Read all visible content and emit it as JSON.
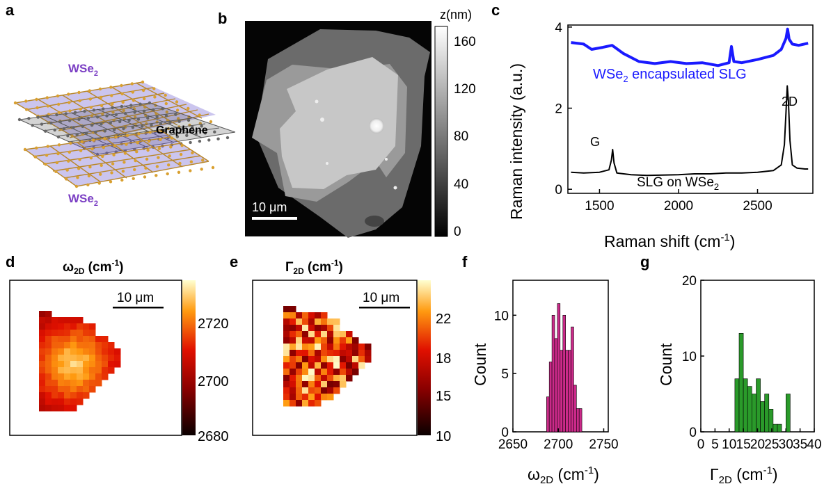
{
  "panel_labels": [
    "a",
    "b",
    "c",
    "d",
    "e",
    "f",
    "g"
  ],
  "panel_a": {
    "top_layer": "WSe",
    "bottom_layer": "WSe",
    "subscript": "2",
    "middle_layer": "Graphene"
  },
  "panel_b": {
    "colorbar_title": "z(nm)",
    "colorbar_ticks": [
      "160",
      "120",
      "80",
      "40",
      "0"
    ],
    "scalebar": "10 μm"
  },
  "panel_d": {
    "title_main": "ω",
    "title_sub": "2D",
    "title_unit": " (cm",
    "title_exp": "-1",
    "title_close": ")",
    "scalebar": "10 μm",
    "colorbar_ticks": [
      "2720",
      "2700",
      "2680"
    ]
  },
  "panel_e": {
    "title_main": "Γ",
    "title_sub": "2D",
    "title_unit": " (cm",
    "title_exp": "-1",
    "title_close": ")",
    "scalebar": "10 μm",
    "colorbar_ticks": [
      "22",
      "18",
      "15",
      "10"
    ]
  },
  "chart_data": [
    {
      "panel": "c",
      "type": "line",
      "xlabel": "Raman shift (cm-1)",
      "ylabel": "Raman intensity (a.u.)",
      "xlim": [
        1300,
        2850
      ],
      "ylim": [
        -0.1,
        4.05
      ],
      "xticks": [
        1500,
        2000,
        2500
      ],
      "yticks": [
        0,
        2,
        4
      ],
      "annotations": [
        "WSe2 encapsulated SLG",
        "SLG on WSe2",
        "G",
        "2D"
      ],
      "series": [
        {
          "name": "WSe2 encapsulated SLG",
          "color": "#1a1aff",
          "x": [
            1320,
            1400,
            1450,
            1520,
            1580,
            1650,
            1750,
            1850,
            1950,
            2050,
            2150,
            2250,
            2320,
            2335,
            2350,
            2400,
            2500,
            2600,
            2650,
            2680,
            2690,
            2700,
            2720,
            2760,
            2820
          ],
          "y": [
            3.62,
            3.58,
            3.45,
            3.5,
            3.55,
            3.35,
            3.15,
            3.1,
            3.15,
            3.1,
            3.12,
            3.05,
            3.12,
            3.52,
            3.15,
            3.12,
            3.2,
            3.3,
            3.45,
            3.72,
            3.95,
            3.7,
            3.58,
            3.55,
            3.6
          ]
        },
        {
          "name": "SLG on WSe2",
          "color": "#000000",
          "x": [
            1320,
            1400,
            1500,
            1560,
            1575,
            1583,
            1592,
            1610,
            1700,
            1800,
            1900,
            2000,
            2100,
            2200,
            2300,
            2400,
            2500,
            2600,
            2650,
            2670,
            2680,
            2688,
            2695,
            2705,
            2720,
            2750,
            2800,
            2820
          ],
          "y": [
            0.42,
            0.4,
            0.42,
            0.48,
            0.72,
            0.98,
            0.65,
            0.4,
            0.36,
            0.34,
            0.35,
            0.36,
            0.38,
            0.38,
            0.4,
            0.4,
            0.42,
            0.46,
            0.6,
            1.1,
            1.9,
            2.55,
            2.2,
            1.2,
            0.6,
            0.52,
            0.5,
            0.5
          ]
        }
      ]
    },
    {
      "panel": "f",
      "type": "bar",
      "xlabel": "ω2D (cm-1)",
      "ylabel": "Count",
      "xlim": [
        2650,
        2755
      ],
      "ylim": [
        0,
        13
      ],
      "xticks": [
        2650,
        2700,
        2750
      ],
      "yticks": [
        0,
        5,
        10
      ],
      "color": "#cc2a8a",
      "x": [
        2688.5,
        2691.5,
        2694.5,
        2697.5,
        2700.5,
        2703.5,
        2706.5,
        2709.5,
        2712.5,
        2715.5,
        2718.5,
        2721.5,
        2724.5
      ],
      "values": [
        3,
        6,
        10,
        8,
        11,
        7,
        10,
        7,
        7,
        9,
        4,
        2,
        2
      ]
    },
    {
      "panel": "g",
      "type": "bar",
      "xlabel": "Γ2D (cm-1)",
      "ylabel": "Count",
      "xlim": [
        0,
        40
      ],
      "ylim": [
        0,
        20
      ],
      "xticks": [
        0,
        5,
        10,
        15,
        20,
        25,
        30,
        35,
        40
      ],
      "yticks": [
        0,
        10,
        20
      ],
      "color": "#2a9a2a",
      "x": [
        12.75,
        14.25,
        15.75,
        17.25,
        18.75,
        20.25,
        21.75,
        23.25,
        24.75,
        26.25,
        27.75,
        29.25,
        30.75
      ],
      "values": [
        7,
        13,
        7,
        6,
        5,
        7,
        4,
        5,
        3,
        1,
        1,
        0,
        5
      ]
    }
  ]
}
